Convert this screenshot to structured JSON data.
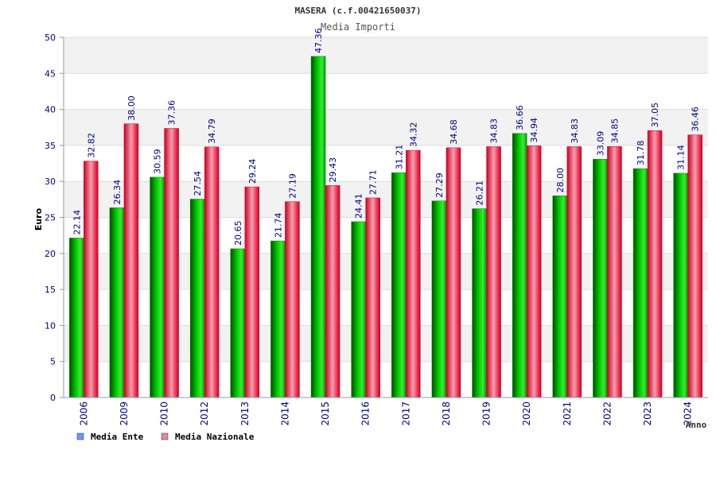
{
  "chart_data": {
    "type": "bar",
    "title": "MASERA (c.f.00421650037)",
    "subtitle": "Media Importi",
    "xlabel": "Anno",
    "ylabel": "Euro",
    "ylim": [
      0,
      50
    ],
    "yticks": [
      0,
      5,
      10,
      15,
      20,
      25,
      30,
      35,
      40,
      45,
      50
    ],
    "grid": true,
    "legend_position": "bottom-left",
    "categories": [
      "2006",
      "2009",
      "2010",
      "2012",
      "2013",
      "2014",
      "2015",
      "2016",
      "2017",
      "2018",
      "2019",
      "2020",
      "2021",
      "2022",
      "2023",
      "2024"
    ],
    "series": [
      {
        "name": "Media Ente",
        "color": "#00bb00",
        "legend_color": "#6699ff",
        "values": [
          22.14,
          26.34,
          30.59,
          27.54,
          20.65,
          21.74,
          47.36,
          24.41,
          31.21,
          27.29,
          26.21,
          36.66,
          28.0,
          33.09,
          31.78,
          31.14
        ],
        "labels": [
          "22.14",
          "26.34",
          "30.59",
          "27.54",
          "20.65",
          "21.74",
          "47.36",
          "24.41",
          "31.21",
          "27.29",
          "26.21",
          "36.66",
          "28.00",
          "33.09",
          "31.78",
          "31.14"
        ]
      },
      {
        "name": "Media Nazionale",
        "color": "#ee1133",
        "legend_color": "#dd88aa",
        "values": [
          32.82,
          38.0,
          37.36,
          34.79,
          29.24,
          27.19,
          29.43,
          27.71,
          34.32,
          34.68,
          34.83,
          34.94,
          34.83,
          34.85,
          37.05,
          36.46
        ],
        "labels": [
          "32.82",
          "38.00",
          "37.36",
          "34.79",
          "29.24",
          "27.19",
          "29.43",
          "27.71",
          "34.32",
          "34.68",
          "34.83",
          "34.94",
          "34.83",
          "34.85",
          "37.05",
          "36.46"
        ]
      }
    ]
  }
}
